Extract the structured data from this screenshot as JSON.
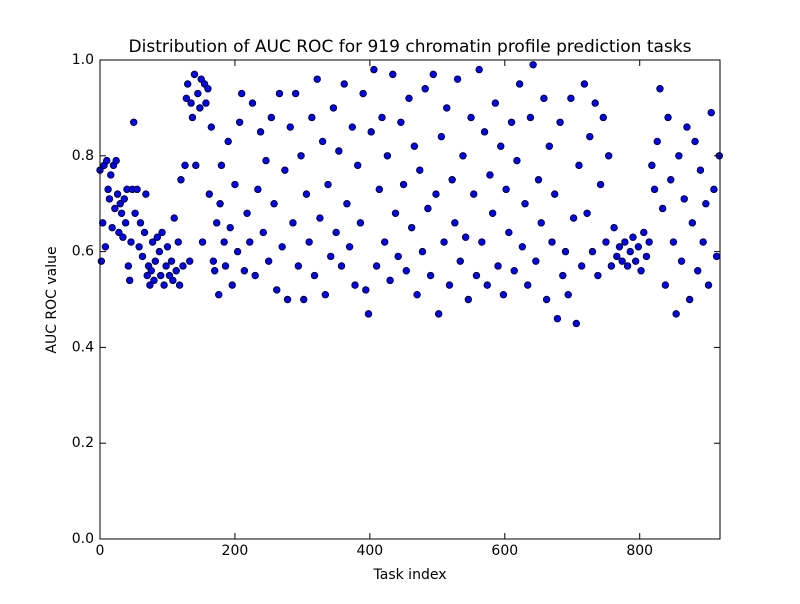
{
  "chart_data": {
    "type": "scatter",
    "title": "Distribution of AUC ROC for 919 chromatin profile prediction tasks",
    "x_label": "Task index",
    "y_label": "AUC ROC value",
    "xlim": [
      0,
      919
    ],
    "ylim": [
      0,
      1
    ],
    "xticks": [
      0,
      200,
      400,
      600,
      800
    ],
    "yticks": [
      {
        "value": 0,
        "label": "0.0"
      },
      0.2,
      0.4,
      0.6,
      0.8,
      {
        "value": 1,
        "label": "1.0"
      }
    ],
    "grid": false,
    "x": [
      0,
      2,
      4,
      6,
      8,
      10,
      12,
      14,
      16,
      18,
      20,
      22,
      24,
      26,
      28,
      30,
      32,
      34,
      36,
      38,
      40,
      42,
      44,
      46,
      48,
      50,
      52,
      55,
      58,
      60,
      63,
      66,
      68,
      70,
      72,
      74,
      76,
      78,
      80,
      82,
      85,
      88,
      90,
      92,
      95,
      98,
      100,
      103,
      106,
      108,
      110,
      113,
      116,
      118,
      120,
      123,
      126,
      128,
      130,
      133,
      135,
      137,
      140,
      142,
      145,
      148,
      150,
      152,
      155,
      157,
      160,
      162,
      165,
      168,
      170,
      173,
      176,
      178,
      180,
      184,
      186,
      190,
      193,
      196,
      200,
      204,
      207,
      210,
      214,
      218,
      222,
      226,
      230,
      234,
      238,
      242,
      246,
      250,
      254,
      258,
      262,
      266,
      270,
      274,
      278,
      282,
      286,
      290,
      294,
      298,
      302,
      306,
      310,
      314,
      318,
      322,
      326,
      330,
      334,
      338,
      342,
      346,
      350,
      354,
      358,
      362,
      366,
      370,
      374,
      378,
      382,
      386,
      390,
      394,
      398,
      402,
      406,
      410,
      414,
      418,
      422,
      426,
      430,
      434,
      438,
      442,
      446,
      450,
      454,
      458,
      462,
      466,
      470,
      474,
      478,
      482,
      486,
      490,
      494,
      498,
      502,
      506,
      510,
      514,
      518,
      522,
      526,
      530,
      534,
      538,
      542,
      546,
      550,
      554,
      558,
      562,
      566,
      570,
      574,
      578,
      582,
      586,
      590,
      594,
      598,
      602,
      606,
      610,
      614,
      618,
      622,
      626,
      630,
      634,
      638,
      642,
      646,
      650,
      654,
      658,
      662,
      666,
      670,
      674,
      678,
      682,
      686,
      690,
      694,
      698,
      702,
      706,
      710,
      714,
      718,
      722,
      726,
      730,
      734,
      738,
      742,
      746,
      750,
      754,
      758,
      762,
      766,
      770,
      774,
      778,
      782,
      786,
      790,
      794,
      798,
      802,
      806,
      810,
      814,
      818,
      822,
      826,
      830,
      834,
      838,
      842,
      846,
      850,
      854,
      858,
      862,
      866,
      870,
      874,
      878,
      882,
      886,
      890,
      894,
      898,
      902,
      906,
      910,
      914,
      918
    ],
    "series": [
      {
        "color": "#0000ff",
        "edgecolor": "#000000",
        "values": [
          0.77,
          0.58,
          0.66,
          0.78,
          0.61,
          0.79,
          0.73,
          0.71,
          0.76,
          0.65,
          0.78,
          0.69,
          0.79,
          0.72,
          0.64,
          0.7,
          0.68,
          0.63,
          0.71,
          0.66,
          0.73,
          0.57,
          0.54,
          0.62,
          0.73,
          0.87,
          0.68,
          0.73,
          0.61,
          0.66,
          0.59,
          0.64,
          0.72,
          0.55,
          0.57,
          0.53,
          0.56,
          0.62,
          0.54,
          0.58,
          0.63,
          0.6,
          0.55,
          0.64,
          0.53,
          0.57,
          0.61,
          0.55,
          0.58,
          0.54,
          0.67,
          0.56,
          0.62,
          0.53,
          0.75,
          0.57,
          0.78,
          0.92,
          0.95,
          0.58,
          0.91,
          0.88,
          0.97,
          0.78,
          0.93,
          0.9,
          0.96,
          0.62,
          0.95,
          0.91,
          0.94,
          0.72,
          0.86,
          0.58,
          0.56,
          0.66,
          0.51,
          0.7,
          0.78,
          0.62,
          0.57,
          0.83,
          0.65,
          0.53,
          0.74,
          0.6,
          0.87,
          0.93,
          0.56,
          0.68,
          0.62,
          0.91,
          0.55,
          0.73,
          0.85,
          0.64,
          0.79,
          0.58,
          0.88,
          0.7,
          0.52,
          0.93,
          0.61,
          0.77,
          0.5,
          0.86,
          0.66,
          0.93,
          0.57,
          0.8,
          0.5,
          0.72,
          0.62,
          0.88,
          0.55,
          0.96,
          0.67,
          0.83,
          0.51,
          0.74,
          0.59,
          0.9,
          0.64,
          0.81,
          0.57,
          0.95,
          0.7,
          0.61,
          0.86,
          0.53,
          0.78,
          0.66,
          0.93,
          0.52,
          0.47,
          0.85,
          0.98,
          0.57,
          0.73,
          0.88,
          0.62,
          0.8,
          0.54,
          0.97,
          0.68,
          0.59,
          0.87,
          0.74,
          0.56,
          0.92,
          0.65,
          0.82,
          0.51,
          0.77,
          0.6,
          0.94,
          0.69,
          0.55,
          0.97,
          0.72,
          0.47,
          0.84,
          0.62,
          0.9,
          0.53,
          0.75,
          0.66,
          0.96,
          0.58,
          0.8,
          0.63,
          0.5,
          0.88,
          0.72,
          0.55,
          0.98,
          0.62,
          0.85,
          0.53,
          0.76,
          0.68,
          0.91,
          0.57,
          0.82,
          0.51,
          0.73,
          0.64,
          0.87,
          0.56,
          0.79,
          0.95,
          0.61,
          0.7,
          0.53,
          0.88,
          0.99,
          0.58,
          0.75,
          0.66,
          0.92,
          0.5,
          0.82,
          0.62,
          0.72,
          0.46,
          0.87,
          0.55,
          0.6,
          0.51,
          0.92,
          0.67,
          0.45,
          0.78,
          0.57,
          0.95,
          0.68,
          0.84,
          0.6,
          0.91,
          0.55,
          0.74,
          0.88,
          0.62,
          0.8,
          0.57,
          0.65,
          0.59,
          0.61,
          0.58,
          0.62,
          0.57,
          0.6,
          0.63,
          0.58,
          0.61,
          0.56,
          0.64,
          0.59,
          0.62,
          0.78,
          0.73,
          0.83,
          0.94,
          0.69,
          0.53,
          0.88,
          0.75,
          0.62,
          0.47,
          0.8,
          0.58,
          0.71,
          0.86,
          0.5,
          0.66,
          0.83,
          0.56,
          0.77,
          0.62,
          0.7,
          0.53,
          0.89,
          0.73,
          0.59,
          0.8
        ]
      }
    ]
  }
}
